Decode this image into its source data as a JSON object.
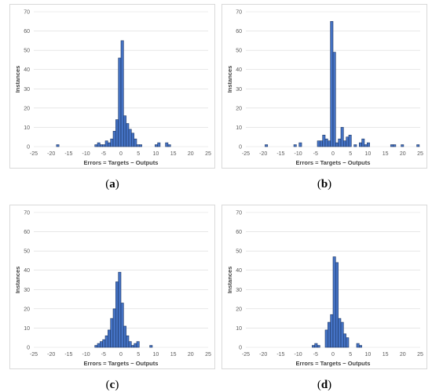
{
  "chart_data": [
    {
      "type": "bar",
      "caption": [
        "(",
        "a",
        ")"
      ],
      "xlabel": "Errors = Targets − Outputs",
      "ylabel": "Instances",
      "xlim": [
        -25,
        25
      ],
      "ylim": [
        0,
        70
      ],
      "xticks": [
        -25,
        -20,
        -15,
        -10,
        -5,
        0,
        5,
        10,
        15,
        20,
        25
      ],
      "yticks": [
        0,
        10,
        20,
        30,
        40,
        50,
        60,
        70
      ],
      "bin_width": 0.75,
      "grid": true,
      "bins": [
        {
          "x": -18.5,
          "y": 1
        },
        {
          "x": -7.5,
          "y": 1
        },
        {
          "x": -6.75,
          "y": 2
        },
        {
          "x": -6,
          "y": 1
        },
        {
          "x": -5.25,
          "y": 1
        },
        {
          "x": -4.5,
          "y": 3
        },
        {
          "x": -3.75,
          "y": 2
        },
        {
          "x": -3,
          "y": 4
        },
        {
          "x": -2.25,
          "y": 8
        },
        {
          "x": -1.5,
          "y": 14
        },
        {
          "x": -0.75,
          "y": 46
        },
        {
          "x": 0,
          "y": 55
        },
        {
          "x": 0.75,
          "y": 16
        },
        {
          "x": 1.5,
          "y": 12
        },
        {
          "x": 2.25,
          "y": 9
        },
        {
          "x": 3,
          "y": 7
        },
        {
          "x": 3.75,
          "y": 4
        },
        {
          "x": 4.5,
          "y": 1
        },
        {
          "x": 5.25,
          "y": 1
        },
        {
          "x": 9.75,
          "y": 1
        },
        {
          "x": 10.5,
          "y": 2
        },
        {
          "x": 12.75,
          "y": 2
        },
        {
          "x": 13.5,
          "y": 1
        }
      ]
    },
    {
      "type": "bar",
      "caption": [
        "(",
        "b",
        ")"
      ],
      "xlabel": "Errors = Targets − Outputs",
      "ylabel": "Instances",
      "xlim": [
        -25,
        25
      ],
      "ylim": [
        0,
        70
      ],
      "xticks": [
        -25,
        -20,
        -15,
        -10,
        -5,
        0,
        5,
        10,
        15,
        20,
        25
      ],
      "yticks": [
        0,
        10,
        20,
        30,
        40,
        50,
        60,
        70
      ],
      "bin_width": 0.75,
      "grid": true,
      "bins": [
        {
          "x": -19.5,
          "y": 1
        },
        {
          "x": -11.25,
          "y": 1
        },
        {
          "x": -9.75,
          "y": 2
        },
        {
          "x": -4.5,
          "y": 3
        },
        {
          "x": -3.75,
          "y": 3
        },
        {
          "x": -3,
          "y": 6
        },
        {
          "x": -2.25,
          "y": 4
        },
        {
          "x": -1.5,
          "y": 3
        },
        {
          "x": -0.75,
          "y": 65
        },
        {
          "x": 0,
          "y": 49
        },
        {
          "x": 0.75,
          "y": 2
        },
        {
          "x": 1.5,
          "y": 4
        },
        {
          "x": 2.25,
          "y": 10
        },
        {
          "x": 3,
          "y": 3
        },
        {
          "x": 3.75,
          "y": 5
        },
        {
          "x": 4.5,
          "y": 6
        },
        {
          "x": 6,
          "y": 1
        },
        {
          "x": 7.5,
          "y": 2
        },
        {
          "x": 8.25,
          "y": 4
        },
        {
          "x": 9,
          "y": 1
        },
        {
          "x": 9.75,
          "y": 2
        },
        {
          "x": 16.5,
          "y": 1
        },
        {
          "x": 17.25,
          "y": 1
        },
        {
          "x": 19.5,
          "y": 1
        },
        {
          "x": 24,
          "y": 1
        }
      ]
    },
    {
      "type": "bar",
      "caption": [
        "(",
        "c",
        ")"
      ],
      "xlabel": "Errors = Targets − Outputs",
      "ylabel": "Instances",
      "xlim": [
        -25,
        25
      ],
      "ylim": [
        0,
        70
      ],
      "xticks": [
        -25,
        -20,
        -15,
        -10,
        -5,
        0,
        5,
        10,
        15,
        20,
        25
      ],
      "yticks": [
        0,
        10,
        20,
        30,
        40,
        50,
        60,
        70
      ],
      "bin_width": 0.75,
      "grid": true,
      "bins": [
        {
          "x": -7.5,
          "y": 1
        },
        {
          "x": -6.75,
          "y": 2
        },
        {
          "x": -6,
          "y": 3
        },
        {
          "x": -5.25,
          "y": 4
        },
        {
          "x": -4.5,
          "y": 6
        },
        {
          "x": -3.75,
          "y": 9
        },
        {
          "x": -3,
          "y": 15
        },
        {
          "x": -2.25,
          "y": 20
        },
        {
          "x": -1.5,
          "y": 34
        },
        {
          "x": -0.75,
          "y": 39
        },
        {
          "x": 0,
          "y": 23
        },
        {
          "x": 0.75,
          "y": 11
        },
        {
          "x": 1.5,
          "y": 6
        },
        {
          "x": 2.25,
          "y": 3
        },
        {
          "x": 3,
          "y": 1
        },
        {
          "x": 3.75,
          "y": 2
        },
        {
          "x": 4.5,
          "y": 3
        },
        {
          "x": 8.25,
          "y": 1
        }
      ]
    },
    {
      "type": "bar",
      "caption": [
        "(",
        "d",
        ")"
      ],
      "xlabel": "Errors = Targets − Outputs",
      "ylabel": "Instances",
      "xlim": [
        -25,
        25
      ],
      "ylim": [
        0,
        70
      ],
      "xticks": [
        -25,
        -20,
        -15,
        -10,
        -5,
        0,
        5,
        10,
        15,
        20,
        25
      ],
      "yticks": [
        0,
        10,
        20,
        30,
        40,
        50,
        60,
        70
      ],
      "bin_width": 0.75,
      "grid": true,
      "bins": [
        {
          "x": -6,
          "y": 1
        },
        {
          "x": -5.25,
          "y": 2
        },
        {
          "x": -4.5,
          "y": 1
        },
        {
          "x": -2.25,
          "y": 9
        },
        {
          "x": -1.5,
          "y": 13
        },
        {
          "x": -0.75,
          "y": 17
        },
        {
          "x": 0,
          "y": 47
        },
        {
          "x": 0.75,
          "y": 44
        },
        {
          "x": 1.5,
          "y": 15
        },
        {
          "x": 2.25,
          "y": 13
        },
        {
          "x": 3,
          "y": 7
        },
        {
          "x": 3.75,
          "y": 5
        },
        {
          "x": 6.75,
          "y": 2
        },
        {
          "x": 7.5,
          "y": 1
        }
      ]
    }
  ]
}
